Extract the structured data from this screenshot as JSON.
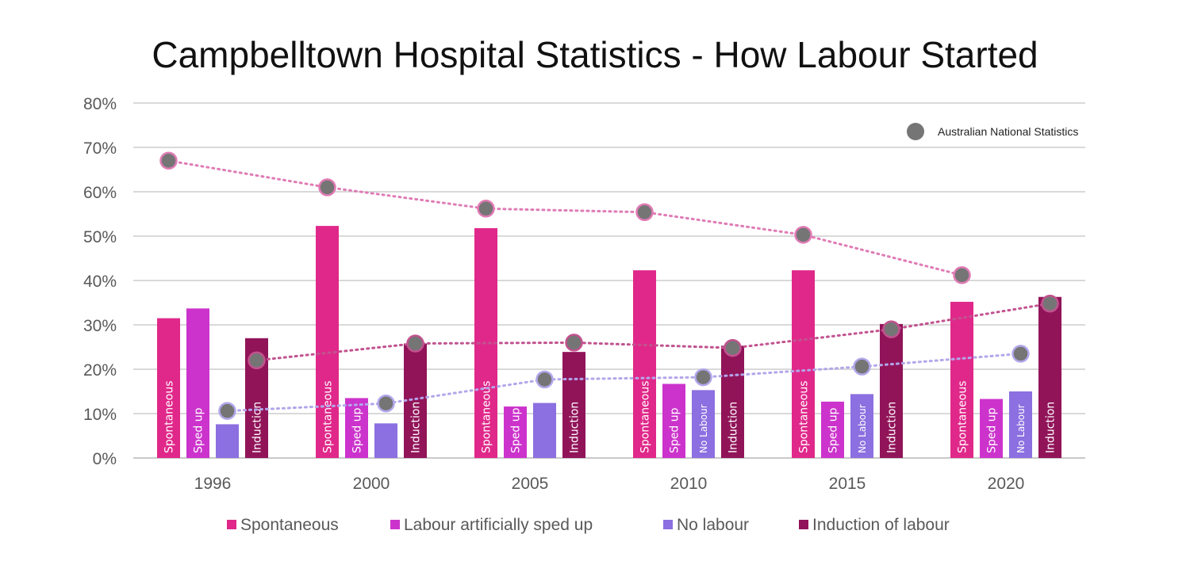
{
  "chart_data": {
    "type": "bar",
    "title": "Campbelltown Hospital Statistics  - How Labour Started",
    "xlabel": "",
    "ylabel": "",
    "ylim": [
      0,
      80
    ],
    "y_ticks": [
      "0%",
      "10%",
      "20%",
      "30%",
      "40%",
      "50%",
      "60%",
      "70%",
      "80%"
    ],
    "categories": [
      "1996",
      "2000",
      "2005",
      "2010",
      "2015",
      "2020"
    ],
    "series": [
      {
        "name": "Spontaneous",
        "color": "#e0288a",
        "values": [
          31.5,
          52.3,
          51.8,
          42.3,
          42.3,
          35.2
        ],
        "bar_labels": [
          "Spontaneous",
          "Spontaneous",
          "Spontaneous",
          "Spontaneous",
          "Spontaneous",
          "Spontaneous"
        ]
      },
      {
        "name": "Labour artificially sped up",
        "color": "#cc33cc",
        "values": [
          33.7,
          13.5,
          11.6,
          16.7,
          12.7,
          13.3
        ],
        "bar_labels": [
          "Sped up",
          "Sped up",
          "Sped up",
          "Sped up",
          "Sped up",
          "Sped up"
        ]
      },
      {
        "name": "No labour",
        "color": "#8c6fe0",
        "values": [
          7.6,
          7.8,
          12.4,
          15.3,
          14.4,
          15.0
        ],
        "bar_labels": [
          "",
          "",
          "",
          "No Labour",
          "No Labour",
          "No Labour"
        ]
      },
      {
        "name": "Induction of labour",
        "color": "#911459",
        "values": [
          27.0,
          25.8,
          23.9,
          25.3,
          30.2,
          36.3
        ],
        "bar_labels": [
          "Induction",
          "Induction",
          "Induction",
          "Induction",
          "Induction",
          "Induction"
        ]
      }
    ],
    "national_statistics": {
      "name": "Australian National Statistics",
      "marker_color": "#757575",
      "points": [
        {
          "series": "Spontaneous",
          "values": [
            67.0,
            61.0,
            56.2,
            55.4,
            50.3,
            41.2
          ],
          "color": "#e07bb5"
        },
        {
          "series": "Induction of labour",
          "values": [
            22.0,
            25.8,
            26.0,
            24.8,
            29.0,
            34.8
          ],
          "color": "#c2528f"
        },
        {
          "series": "No labour",
          "values": [
            10.6,
            12.3,
            17.7,
            18.2,
            20.6,
            23.5
          ],
          "color": "#b3a6eb"
        }
      ]
    },
    "legend": {
      "position": "bottom",
      "entries": [
        "Spontaneous",
        "Labour artificially sped up",
        "No labour",
        "Induction of labour"
      ]
    },
    "grid": true
  }
}
